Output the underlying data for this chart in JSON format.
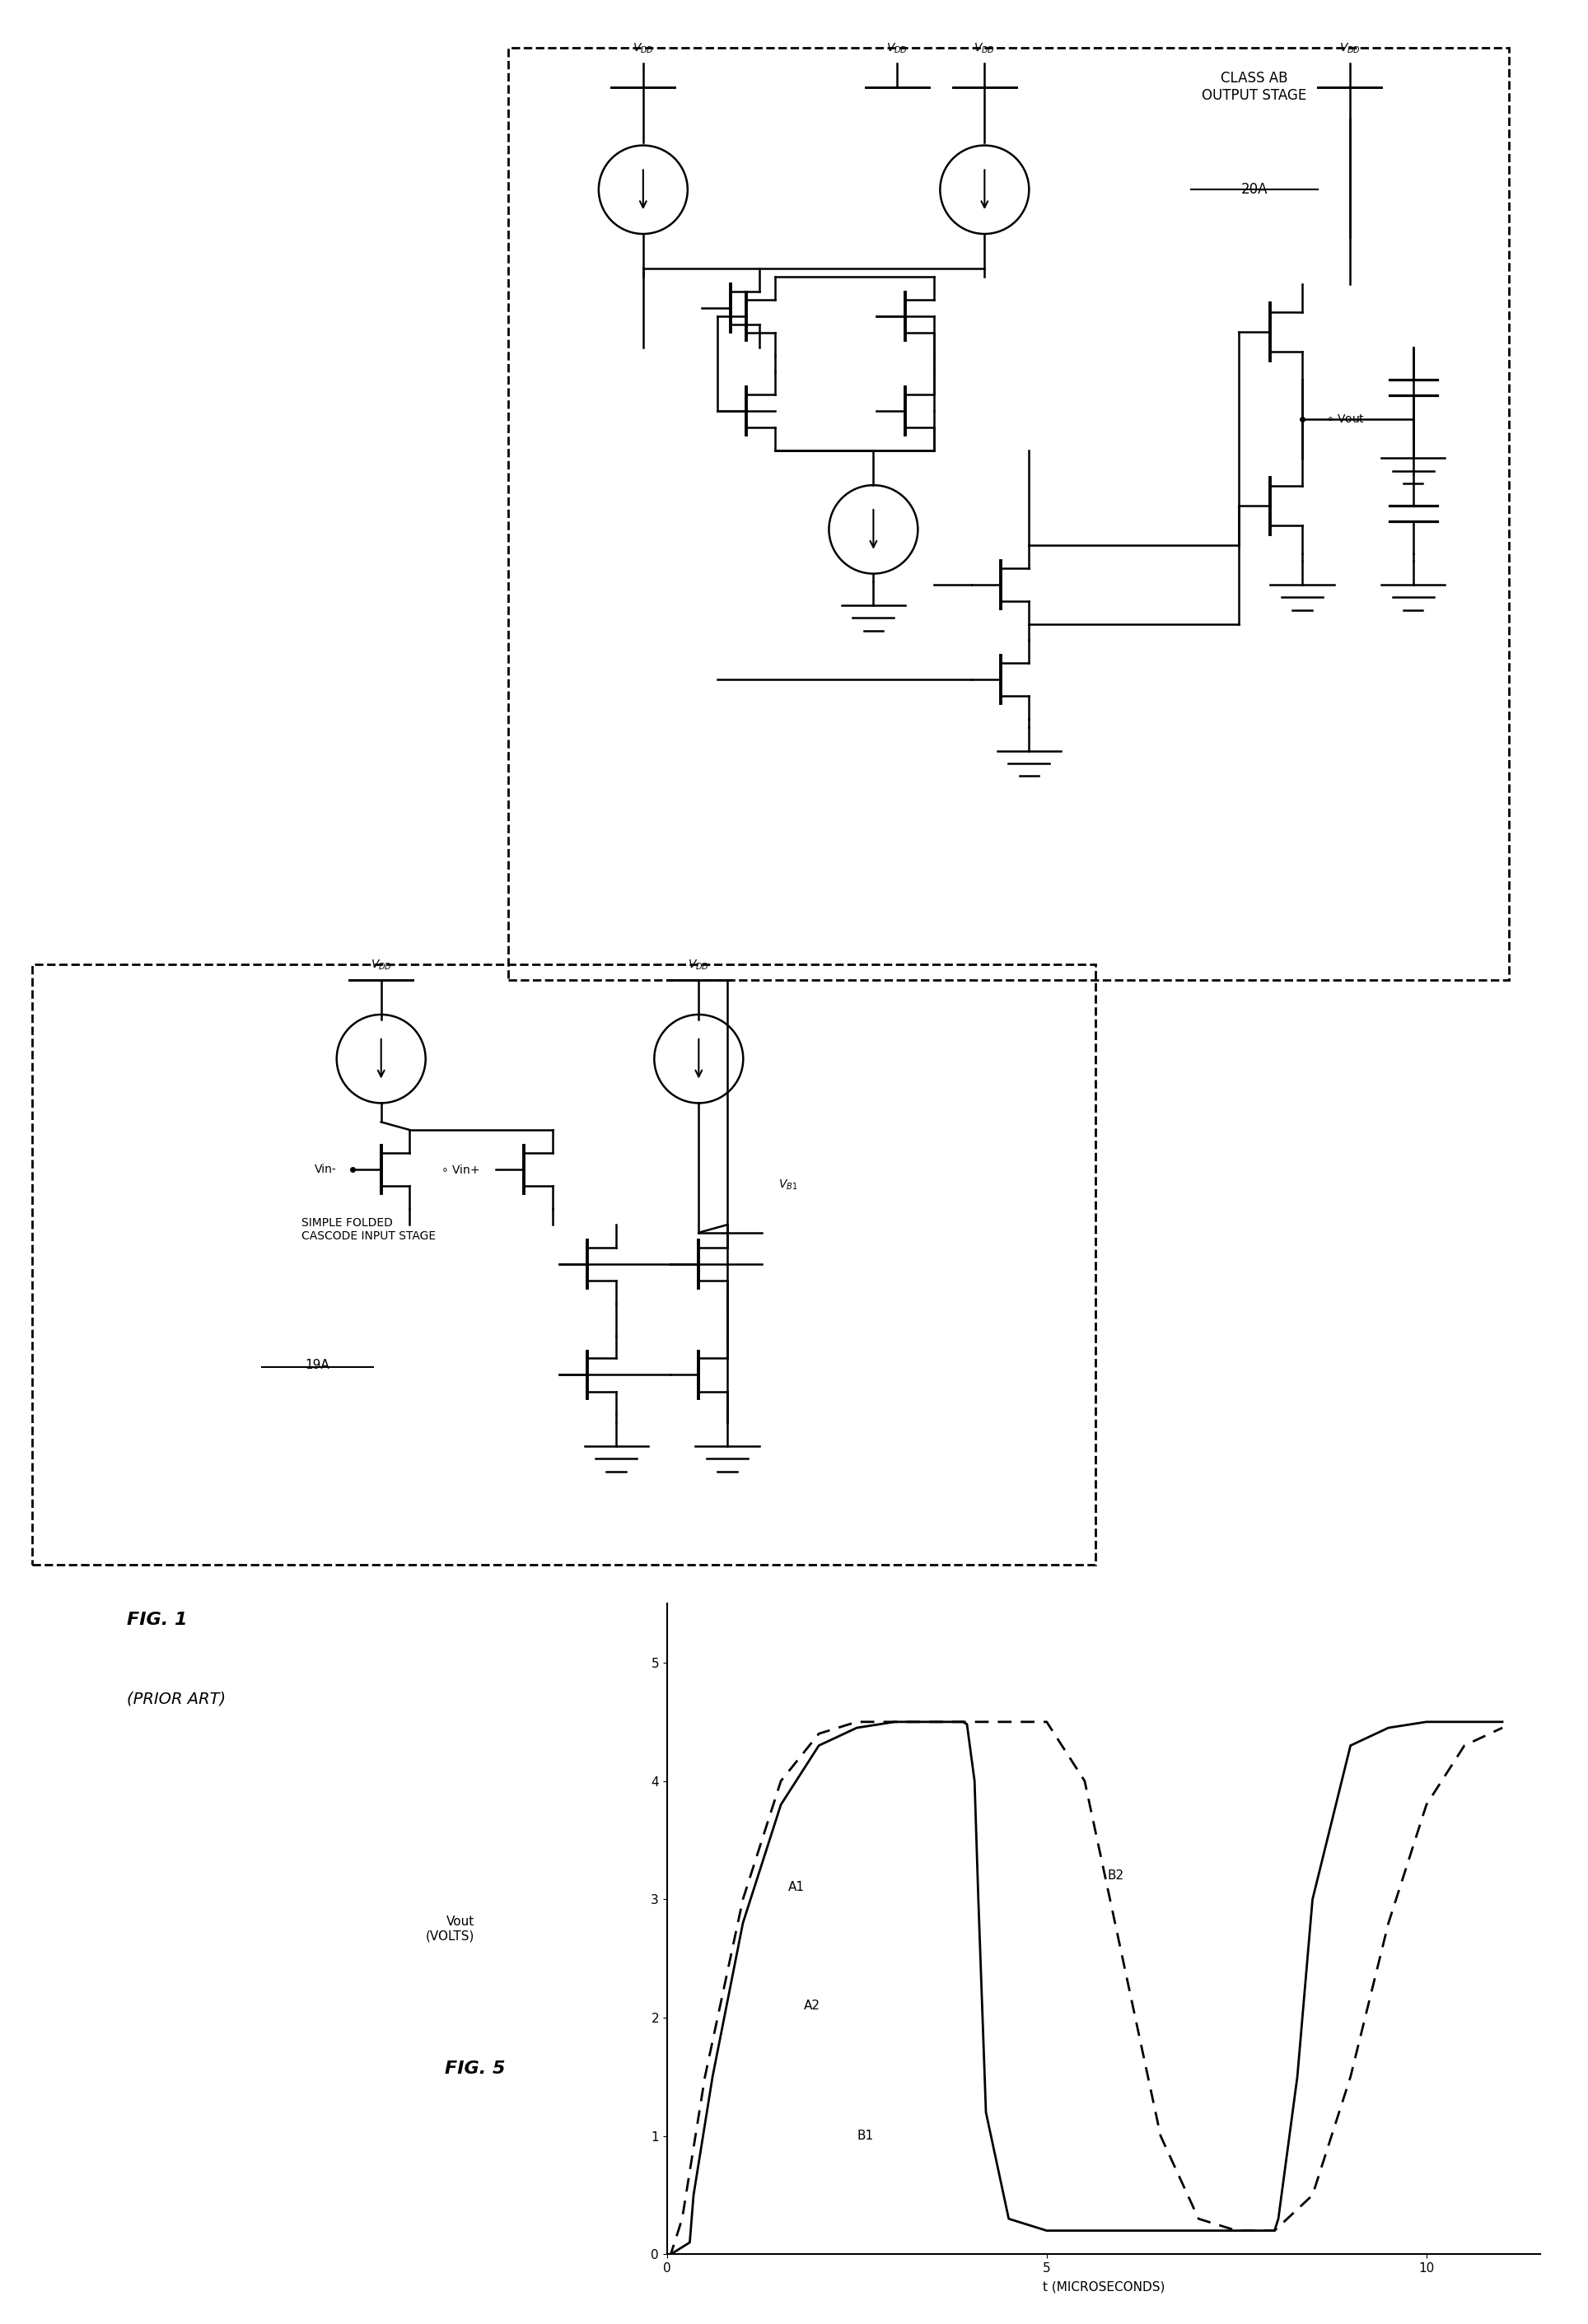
{
  "fig_width": 19.28,
  "fig_height": 28.22,
  "bg_color": "#ffffff",
  "circuit_color": "#000000",
  "fig5_title": "FIG. 5",
  "fig1_title": "FIG. 1",
  "fig1_subtitle": "(PRIOR ART)",
  "ylabel": "Vout\n(VOLTS)",
  "xlabel": "t (MICROSECONDS)",
  "yticks": [
    0,
    1,
    2,
    3,
    4,
    5
  ],
  "xticks": [
    0,
    5,
    10
  ],
  "xlim": [
    0,
    11.5
  ],
  "ylim": [
    0,
    5.5
  ],
  "curve_A_label1": "A1",
  "curve_A_label2": "A2",
  "curve_B_label1": "B1",
  "curve_B_label2": "B2",
  "solid_color": "#000000",
  "dashed_color": "#000000",
  "box1_label": "CLASS AB\nOUTPUT STAGE",
  "box1_ref": "20A",
  "box2_label": "SIMPLE FOLDED\nCASCODE INPUT STAGE",
  "box2_ref": "19A",
  "vdd_label": "V",
  "vdd_sub": "DD",
  "vb1_label": "V",
  "vb1_sub": "B1",
  "vout_label": "Vout",
  "vin_minus": "Vin-",
  "vin_plus": "Vin+"
}
